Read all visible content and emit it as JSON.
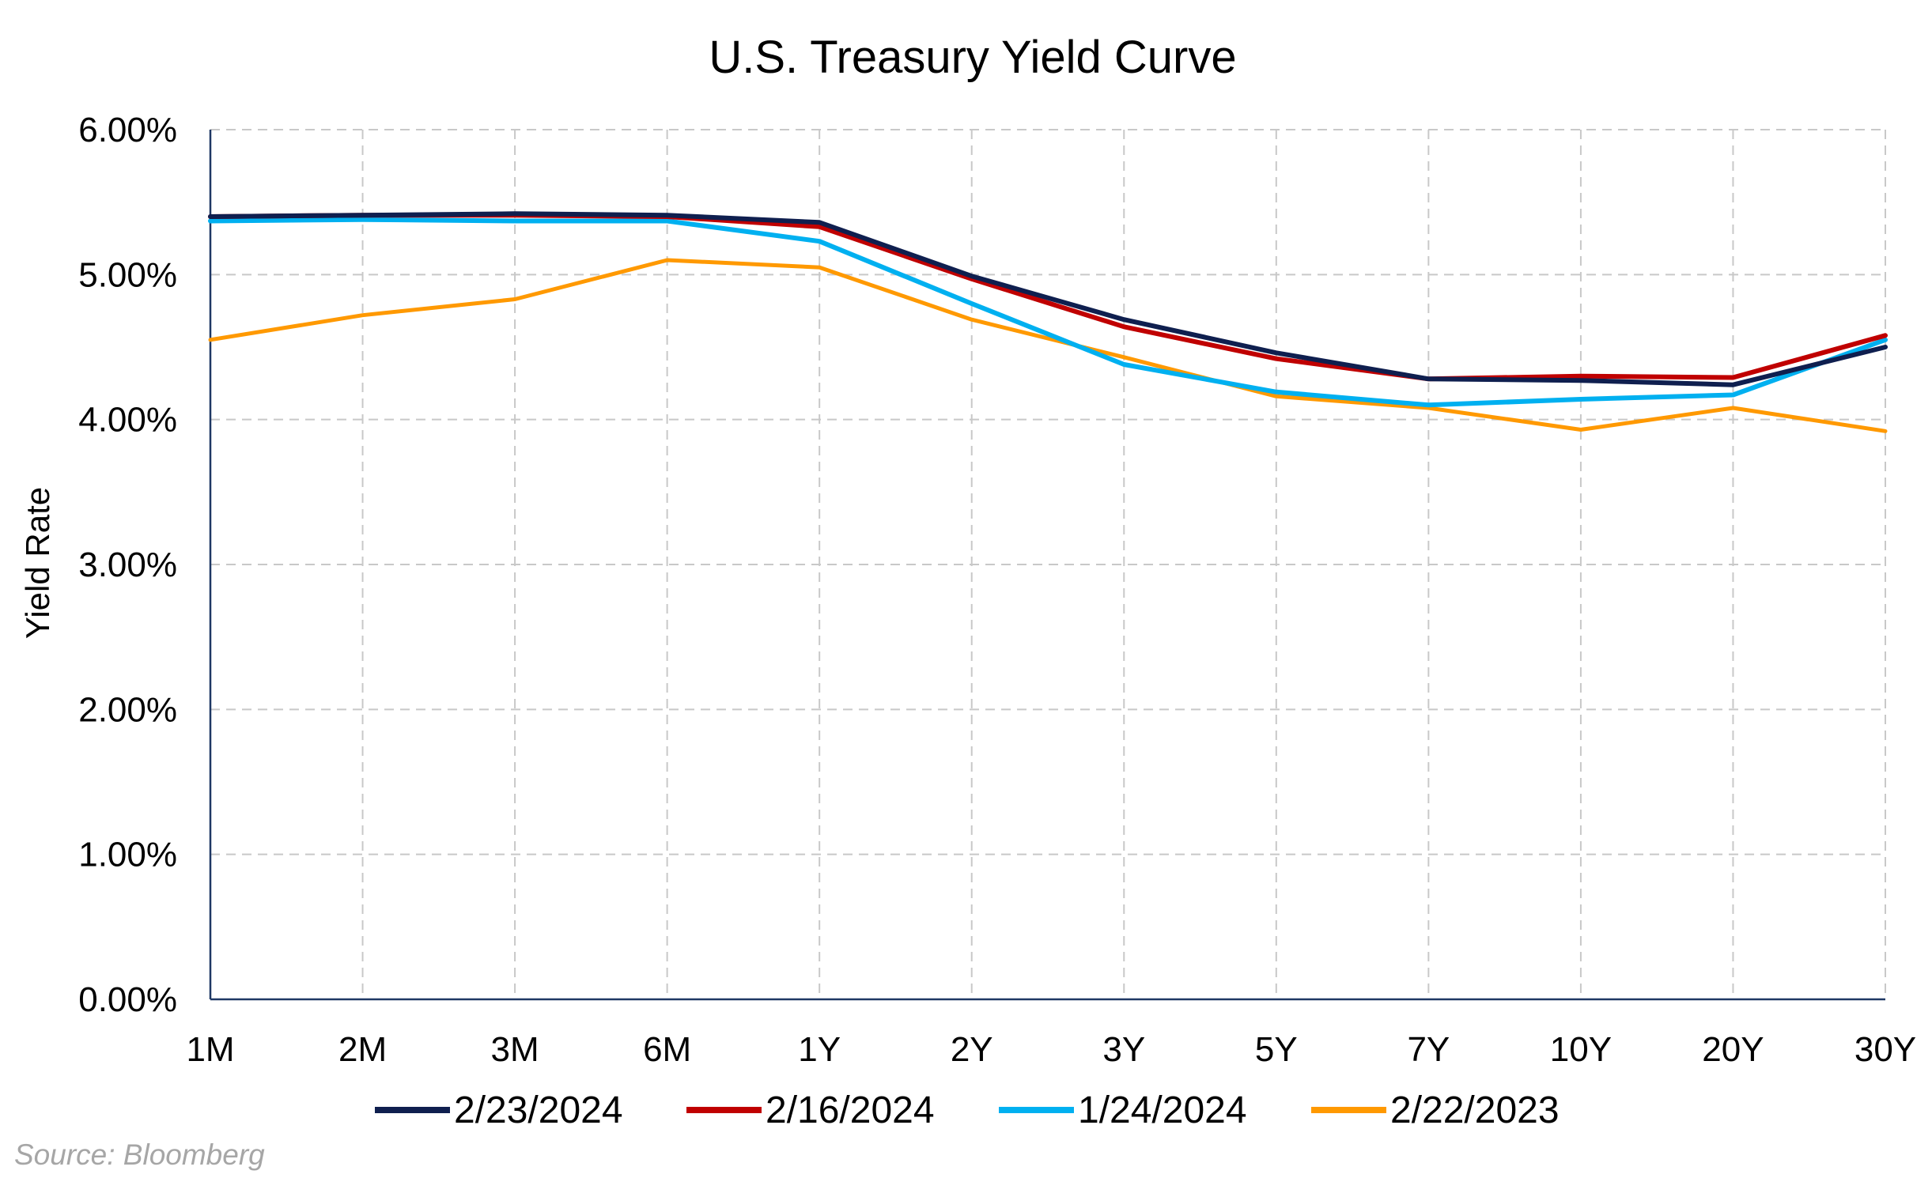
{
  "chart_data": {
    "type": "line",
    "title": "U.S. Treasury Yield Curve",
    "xlabel": "",
    "ylabel": "Yield Rate",
    "categories": [
      "1M",
      "2M",
      "3M",
      "6M",
      "1Y",
      "2Y",
      "3Y",
      "5Y",
      "7Y",
      "10Y",
      "20Y",
      "30Y"
    ],
    "ylim": [
      0,
      6
    ],
    "y_ticks": [
      0,
      1,
      2,
      3,
      4,
      5,
      6
    ],
    "y_tick_labels": [
      "0.00%",
      "1.00%",
      "2.00%",
      "3.00%",
      "4.00%",
      "5.00%",
      "6.00%"
    ],
    "grid": true,
    "legend_position": "bottom",
    "series": [
      {
        "name": "2/23/2024",
        "color": "#0f1f4f",
        "values": [
          5.4,
          5.41,
          5.42,
          5.41,
          5.36,
          4.99,
          4.69,
          4.46,
          4.28,
          4.27,
          4.24,
          4.5
        ]
      },
      {
        "name": "2/16/2024",
        "color": "#c00000",
        "values": [
          5.4,
          5.41,
          5.41,
          5.4,
          5.33,
          4.97,
          4.64,
          4.42,
          4.28,
          4.3,
          4.29,
          4.58
        ]
      },
      {
        "name": "1/24/2024",
        "color": "#00b0f0",
        "values": [
          5.37,
          5.38,
          5.37,
          5.37,
          5.23,
          4.8,
          4.38,
          4.19,
          4.1,
          4.14,
          4.17,
          4.55
        ]
      },
      {
        "name": "2/22/2023",
        "color": "#ff9900",
        "values": [
          4.55,
          4.72,
          4.83,
          5.1,
          5.05,
          4.69,
          4.43,
          4.16,
          4.08,
          3.93,
          4.08,
          3.92
        ]
      }
    ]
  },
  "source": "Source: Bloomberg"
}
